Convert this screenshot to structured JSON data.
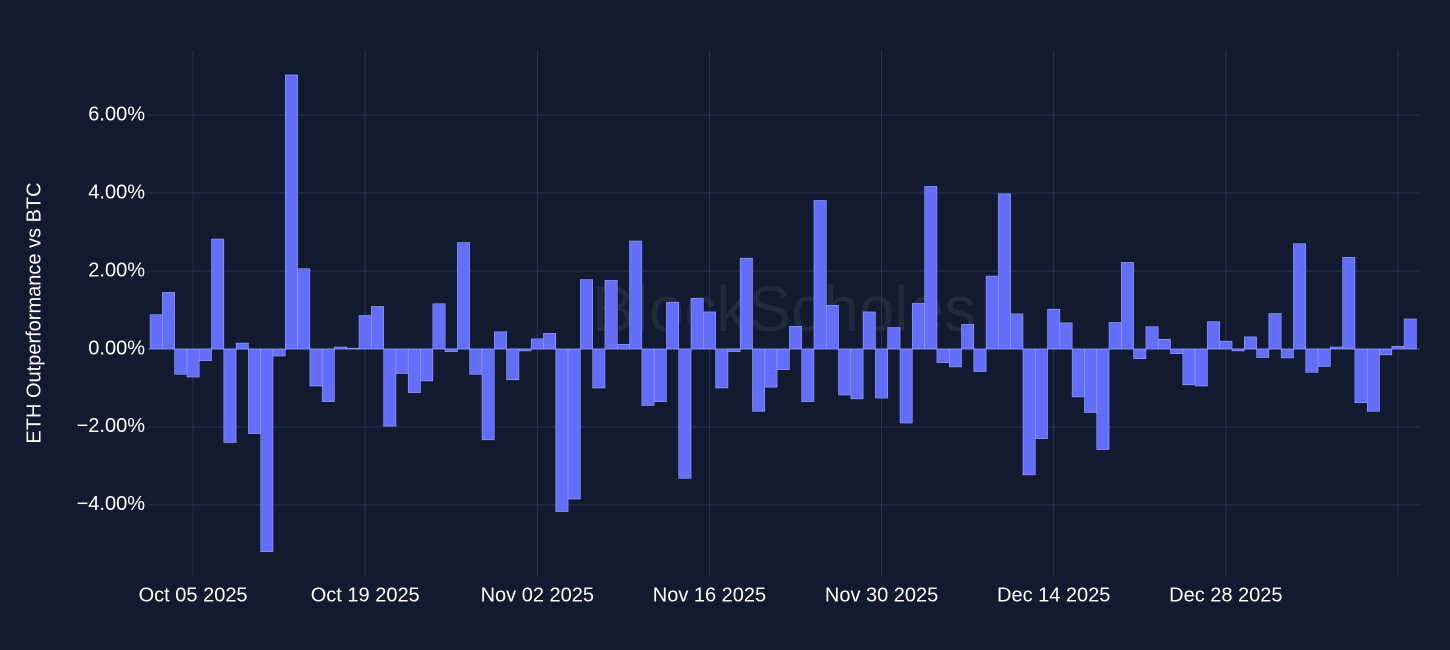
{
  "chart_data": {
    "type": "bar",
    "y_axis_title": "ETH Outperformance vs BTC",
    "watermark": "BlockScholes",
    "color": "#636efa",
    "grid": true,
    "x": [
      "2025-10-02",
      "2025-10-03",
      "2025-10-04",
      "2025-10-05",
      "2025-10-06",
      "2025-10-07",
      "2025-10-08",
      "2025-10-09",
      "2025-10-10",
      "2025-10-11",
      "2025-10-12",
      "2025-10-13",
      "2025-10-14",
      "2025-10-15",
      "2025-10-16",
      "2025-10-17",
      "2025-10-18",
      "2025-10-19",
      "2025-10-20",
      "2025-10-21",
      "2025-10-22",
      "2025-10-23",
      "2025-10-24",
      "2025-10-25",
      "2025-10-26",
      "2025-10-27",
      "2025-10-28",
      "2025-10-29",
      "2025-10-30",
      "2025-10-31",
      "2025-11-01",
      "2025-11-02",
      "2025-11-03",
      "2025-11-04",
      "2025-11-05",
      "2025-11-06",
      "2025-11-07",
      "2025-11-08",
      "2025-11-09",
      "2025-11-10",
      "2025-11-11",
      "2025-11-12",
      "2025-11-13",
      "2025-11-14",
      "2025-11-15",
      "2025-11-16",
      "2025-11-17",
      "2025-11-18",
      "2025-11-19",
      "2025-11-20",
      "2025-11-21",
      "2025-11-22",
      "2025-11-23",
      "2025-11-24",
      "2025-11-25",
      "2025-11-26",
      "2025-11-27",
      "2025-11-28",
      "2025-11-29",
      "2025-11-30",
      "2025-12-01",
      "2025-12-02",
      "2025-12-03",
      "2025-12-04",
      "2025-12-05",
      "2025-12-06",
      "2025-12-07",
      "2025-12-08",
      "2025-12-09",
      "2025-12-10",
      "2025-12-11",
      "2025-12-12",
      "2025-12-13",
      "2025-12-14",
      "2025-12-15",
      "2025-12-16",
      "2025-12-17",
      "2025-12-18",
      "2025-12-19",
      "2025-12-20",
      "2025-12-21",
      "2025-12-22",
      "2025-12-23",
      "2025-12-24",
      "2025-12-25",
      "2025-12-26",
      "2025-12-27",
      "2025-12-28",
      "2025-12-29",
      "2025-12-30",
      "2025-12-31",
      "2026-01-01",
      "2026-01-02",
      "2026-01-03",
      "2026-01-04",
      "2026-01-05",
      "2026-01-06",
      "2026-01-07",
      "2026-01-08",
      "2026-01-09",
      "2026-01-10",
      "2026-01-11",
      "2026-01-12"
    ],
    "values": [
      0.88,
      1.45,
      -0.65,
      -0.72,
      -0.3,
      2.82,
      -2.4,
      0.15,
      -2.17,
      -5.2,
      -0.18,
      7.03,
      2.06,
      -0.95,
      -1.35,
      0.05,
      0.02,
      0.86,
      1.09,
      -1.98,
      -0.63,
      -1.12,
      -0.82,
      1.16,
      -0.07,
      2.73,
      -0.65,
      -2.33,
      0.44,
      -0.79,
      -0.05,
      0.26,
      0.4,
      -4.17,
      -3.85,
      1.78,
      -1.0,
      1.76,
      0.12,
      2.77,
      -1.45,
      -1.35,
      1.2,
      -3.32,
      1.3,
      0.95,
      -1.0,
      -0.07,
      2.33,
      -1.6,
      -0.98,
      -0.53,
      0.58,
      -1.35,
      3.81,
      1.12,
      -1.18,
      -1.28,
      0.95,
      -1.26,
      0.55,
      -1.9,
      1.17,
      4.17,
      -0.35,
      -0.46,
      0.63,
      -0.58,
      1.87,
      3.98,
      0.9,
      -3.23,
      -2.3,
      1.02,
      0.67,
      -1.23,
      -1.63,
      -2.58,
      0.68,
      2.22,
      -0.25,
      0.57,
      0.25,
      -0.12,
      -0.92,
      -0.95,
      0.7,
      0.2,
      -0.05,
      0.31,
      -0.22,
      0.91,
      -0.23,
      2.7,
      -0.6,
      -0.45,
      0.05,
      2.35,
      -1.38,
      -1.6,
      -0.15,
      0.07,
      0.77
    ],
    "xlim": [
      "2025-10-01T08:00",
      "2026-01-12T19:00"
    ],
    "xticks": [
      {
        "value": "2025-10-05",
        "label": "Oct 05 2025"
      },
      {
        "value": "2025-10-19",
        "label": "Oct 19 2025"
      },
      {
        "value": "2025-11-02",
        "label": "Nov 02 2025"
      },
      {
        "value": "2025-11-16",
        "label": "Nov 16 2025"
      },
      {
        "value": "2025-11-30",
        "label": "Nov 30 2025"
      },
      {
        "value": "2025-12-14",
        "label": "Dec 14 2025"
      },
      {
        "value": "2025-12-28",
        "label": "Dec 28 2025"
      },
      {
        "value": "2026-01-11",
        "label": null
      }
    ],
    "ylim": [
      -5.85,
      7.67
    ],
    "yticks": [
      {
        "value": -4,
        "label": "−4.00%"
      },
      {
        "value": -2,
        "label": "−2.00%"
      },
      {
        "value": 0,
        "label": "0.00%"
      },
      {
        "value": 2,
        "label": "2.00%"
      },
      {
        "value": 4,
        "label": "4.00%"
      },
      {
        "value": 6,
        "label": "6.00%"
      }
    ]
  }
}
